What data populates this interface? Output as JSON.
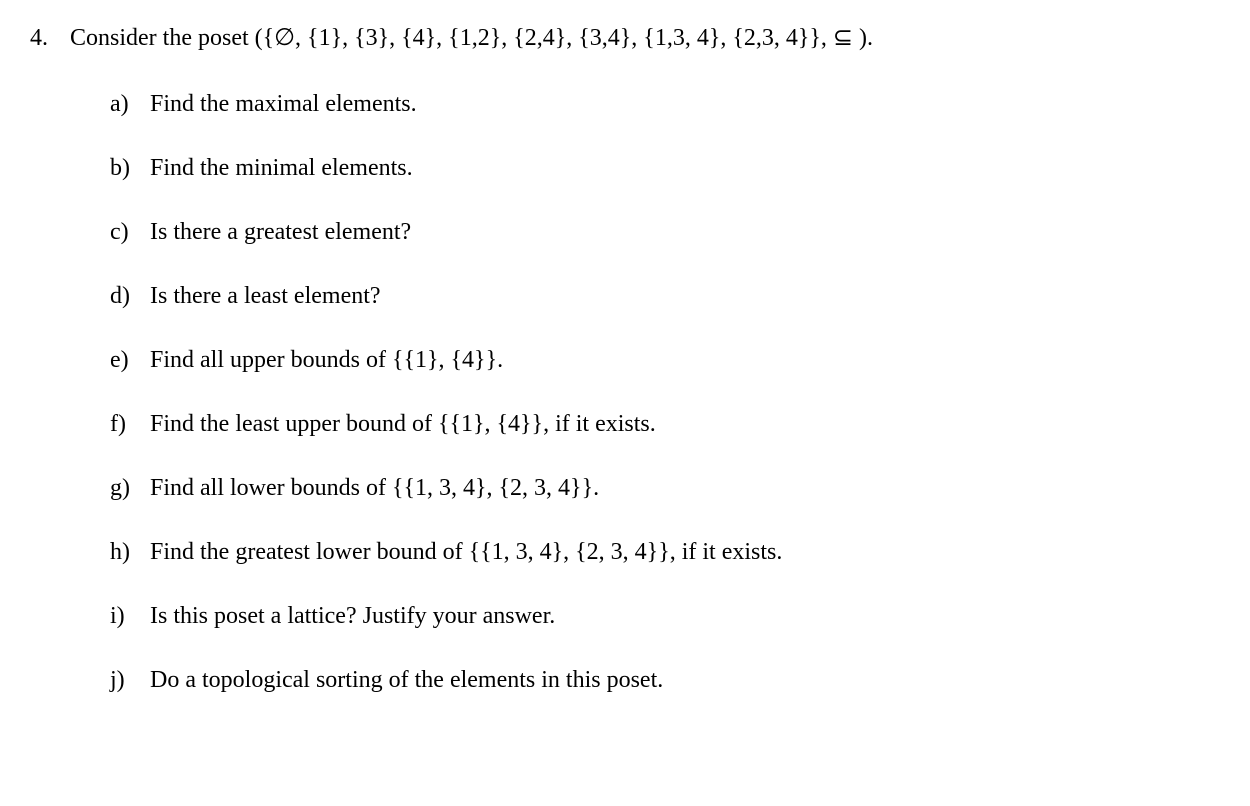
{
  "problem": {
    "number": "4.",
    "statement_prefix": "Consider the poset ",
    "statement_math": "({∅,  {1},  {3},  {4},  {1,2},  {2,4},  {3,4},  {1,3, 4},  {2,3, 4}},  ⊆ ).",
    "items": [
      {
        "label": "a)",
        "text": "Find the maximal elements."
      },
      {
        "label": "b)",
        "text": "Find the minimal elements."
      },
      {
        "label": "c)",
        "text": "Is there a greatest element?"
      },
      {
        "label": "d)",
        "text": "Is there a least element?"
      },
      {
        "label": "e)",
        "text": "Find all upper bounds of {{1},  {4}}."
      },
      {
        "label": "f)",
        "text": "Find the least upper bound of {{1},  {4}}, if it exists."
      },
      {
        "label": "g)",
        "text": "Find all lower bounds of {{1, 3, 4},  {2, 3, 4}}."
      },
      {
        "label": "h)",
        "text": "Find the greatest lower bound of {{1, 3, 4},  {2, 3, 4}}, if it exists."
      },
      {
        "label": "i)",
        "text": "Is this poset a lattice? Justify your answer."
      },
      {
        "label": "j)",
        "text": "Do a topological sorting of the elements in this poset."
      }
    ]
  },
  "styling": {
    "background_color": "#ffffff",
    "text_color": "#000000",
    "font_family": "Times New Roman",
    "base_fontsize": 24,
    "line_spacing": 28
  }
}
